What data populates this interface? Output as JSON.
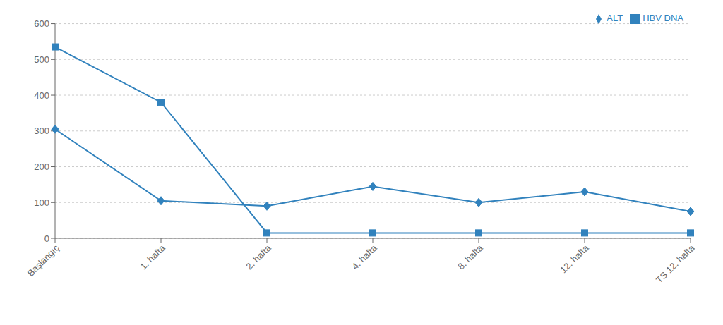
{
  "chart_data": {
    "type": "line",
    "categories": [
      "Başlangıç",
      "1. hafta",
      "2. hafta",
      "4. hafta",
      "8. hafta",
      "12. hafta",
      "TS 12. hafta"
    ],
    "series": [
      {
        "name": "ALT",
        "values": [
          305,
          105,
          90,
          145,
          100,
          130,
          75
        ],
        "marker": "diamond"
      },
      {
        "name": "HBV DNA",
        "values": [
          535,
          380,
          15,
          15,
          15,
          15,
          15
        ],
        "marker": "square"
      }
    ],
    "ylim": [
      0,
      600
    ],
    "yticks": [
      0,
      100,
      200,
      300,
      400,
      500,
      600
    ],
    "grid": true,
    "legend": "upper right"
  }
}
